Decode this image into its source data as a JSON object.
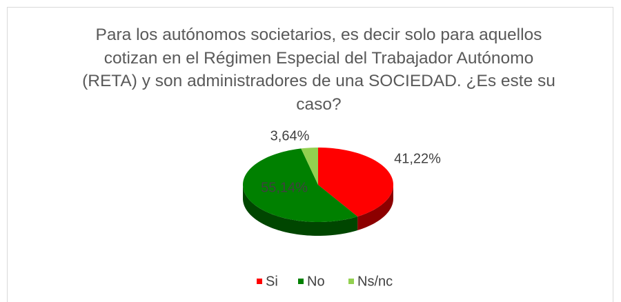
{
  "chart_data": {
    "type": "pie",
    "title": "Para los autónomos societarios, es decir solo para aquellos cotizan en el Régimen Especial del Trabajador Autónomo (RETA) y son administradores de una SOCIEDAD. ¿Es este su caso?",
    "categories": [
      "Si",
      "No",
      "Ns/nc"
    ],
    "values": [
      41.22,
      55.14,
      3.64
    ],
    "value_labels": [
      "41,22%",
      "55,14%",
      "3,64%"
    ],
    "colors": [
      "#ff0000",
      "#008000",
      "#92d050"
    ],
    "legend": "bottom"
  }
}
